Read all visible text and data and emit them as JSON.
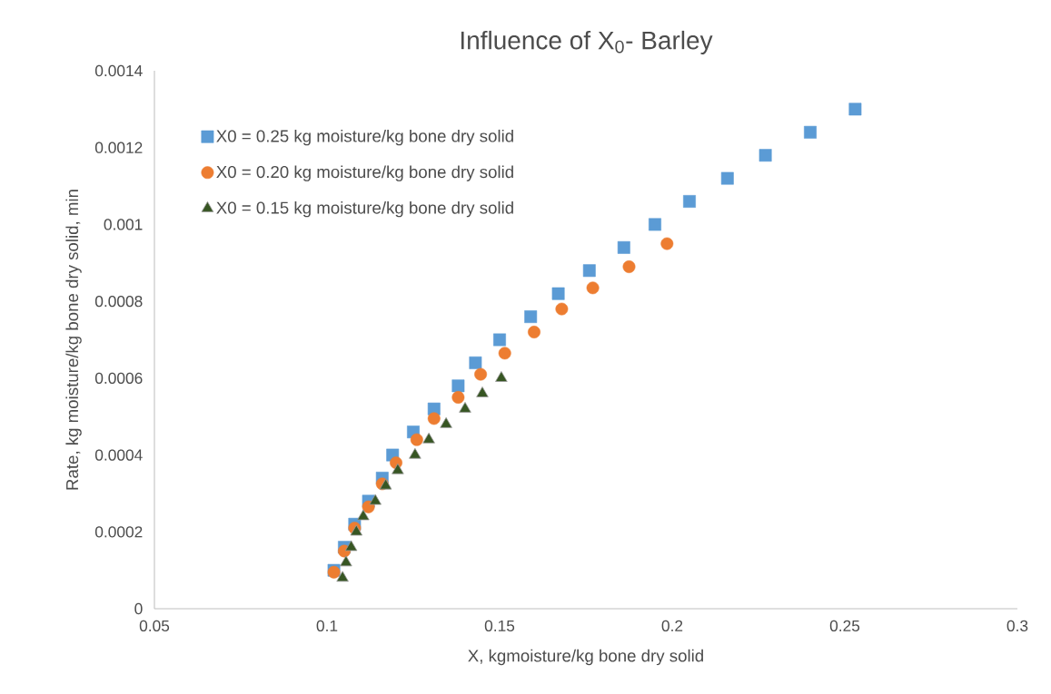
{
  "chart_data": {
    "type": "scatter",
    "title": "Influence of X$_{0}$- Barley",
    "xlabel": "X, kgmoisture/kg bone dry solid",
    "ylabel": "Rate, kg moisture/kg bone dry solid, min",
    "xlim": [
      0.05,
      0.3
    ],
    "xticks": [
      0.05,
      0.1,
      0.15,
      0.2,
      0.25,
      0.3
    ],
    "ylim": [
      0,
      0.0014
    ],
    "yticks": [
      0,
      0.0002,
      0.0004,
      0.0006,
      0.0008,
      0.001,
      0.0012,
      0.0014
    ],
    "grid": false,
    "legend": "top left",
    "series": [
      {
        "name": "X0 = 0.25 kg moisture/kg bone dry solid",
        "color": "#5b9bd5",
        "marker": "square",
        "x": [
          0.102,
          0.105,
          0.108,
          0.112,
          0.116,
          0.119,
          0.125,
          0.131,
          0.138,
          0.143,
          0.15,
          0.159,
          0.167,
          0.176,
          0.186,
          0.195,
          0.205,
          0.216,
          0.227,
          0.24,
          0.253
        ],
        "values": [
          0.0001,
          0.00016,
          0.00022,
          0.00028,
          0.00034,
          0.0004,
          0.00046,
          0.00052,
          0.00058,
          0.00064,
          0.0007,
          0.00076,
          0.00082,
          0.00088,
          0.00094,
          0.001,
          0.00106,
          0.00112,
          0.00118,
          0.00124,
          0.0013
        ]
      },
      {
        "name": "X0 = 0.20 kg moisture/kg bone dry solid",
        "color": "#ed7d31",
        "marker": "circle",
        "x": [
          0.102,
          0.105,
          0.108,
          0.112,
          0.116,
          0.12,
          0.126,
          0.131,
          0.138,
          0.1445,
          0.1515,
          0.16,
          0.168,
          0.177,
          0.1875,
          0.1985
        ],
        "values": [
          9.5e-05,
          0.00015,
          0.00021,
          0.000265,
          0.000325,
          0.00038,
          0.00044,
          0.000495,
          0.00055,
          0.00061,
          0.000665,
          0.00072,
          0.00078,
          0.000835,
          0.00089,
          0.00095
        ]
      },
      {
        "name": "X0 = 0.15 kg moisture/kg bone dry solid",
        "color": "#375623",
        "marker": "triangle",
        "x": [
          0.1045,
          0.1055,
          0.107,
          0.1085,
          0.1105,
          0.114,
          0.117,
          0.1205,
          0.1255,
          0.1295,
          0.1345,
          0.14,
          0.145,
          0.1505
        ],
        "values": [
          8e-05,
          0.00012,
          0.00016,
          0.0002,
          0.00024,
          0.00028,
          0.00032,
          0.00036,
          0.0004,
          0.00044,
          0.00048,
          0.00052,
          0.00056,
          0.0006
        ]
      }
    ]
  }
}
